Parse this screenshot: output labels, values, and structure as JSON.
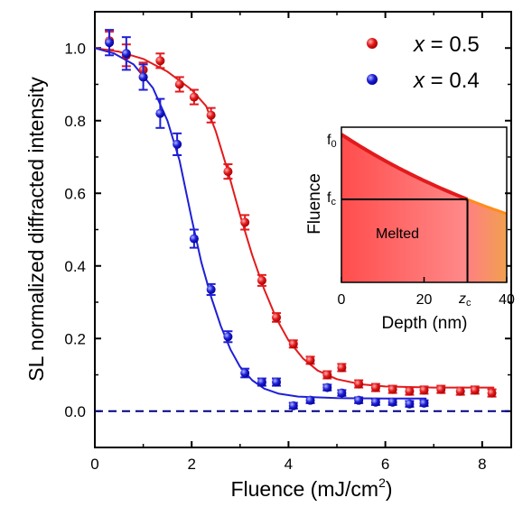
{
  "chart_data": {
    "type": "scatter",
    "xlabel_main": "Fluence (mJ/cm",
    "xlabel_sup": "2",
    "xlabel_close": ")",
    "ylabel": "SL normalized diffracted intensity",
    "xlim": [
      0,
      8.6
    ],
    "ylim": [
      -0.1,
      1.1
    ],
    "x_ticks": [
      0,
      2,
      4,
      6,
      8
    ],
    "y_ticks": [
      0.0,
      0.2,
      0.4,
      0.6,
      0.8,
      1.0
    ],
    "x_tick_labels": [
      "0",
      "2",
      "4",
      "6",
      "8"
    ],
    "y_tick_labels": [
      "0.0",
      "0.2",
      "0.4",
      "0.6",
      "0.8",
      "1.0"
    ],
    "baseline": 0.0,
    "legend_position": "top-right",
    "series": [
      {
        "name": "x = 0.5",
        "color": "#e31a1c",
        "points": [
          {
            "x": 0.3,
            "y": 1.02,
            "err": 0.025
          },
          {
            "x": 0.65,
            "y": 0.98,
            "err": 0.03
          },
          {
            "x": 1.0,
            "y": 0.94,
            "err": 0.02
          },
          {
            "x": 1.35,
            "y": 0.965,
            "err": 0.02
          },
          {
            "x": 1.75,
            "y": 0.9,
            "err": 0.02
          },
          {
            "x": 2.05,
            "y": 0.865,
            "err": 0.02
          },
          {
            "x": 2.4,
            "y": 0.815,
            "err": 0.02
          },
          {
            "x": 2.75,
            "y": 0.66,
            "err": 0.02
          },
          {
            "x": 3.1,
            "y": 0.52,
            "err": 0.02
          },
          {
            "x": 3.45,
            "y": 0.36,
            "err": 0.015
          },
          {
            "x": 3.75,
            "y": 0.258,
            "err": 0.012
          },
          {
            "x": 4.1,
            "y": 0.185,
            "err": 0.01
          },
          {
            "x": 4.45,
            "y": 0.14,
            "err": 0.01
          },
          {
            "x": 4.8,
            "y": 0.1,
            "err": 0.01
          },
          {
            "x": 5.1,
            "y": 0.12,
            "err": 0.01
          },
          {
            "x": 5.45,
            "y": 0.075,
            "err": 0.01
          },
          {
            "x": 5.8,
            "y": 0.065,
            "err": 0.01
          },
          {
            "x": 6.15,
            "y": 0.06,
            "err": 0.01
          },
          {
            "x": 6.5,
            "y": 0.055,
            "err": 0.01
          },
          {
            "x": 6.8,
            "y": 0.058,
            "err": 0.01
          },
          {
            "x": 7.15,
            "y": 0.06,
            "err": 0.01
          },
          {
            "x": 7.55,
            "y": 0.055,
            "err": 0.01
          },
          {
            "x": 7.85,
            "y": 0.058,
            "err": 0.01
          },
          {
            "x": 8.2,
            "y": 0.05,
            "err": 0.01
          }
        ],
        "fit": [
          {
            "x": 0,
            "y": 1.0
          },
          {
            "x": 0.5,
            "y": 0.99
          },
          {
            "x": 1.0,
            "y": 0.97
          },
          {
            "x": 1.5,
            "y": 0.935
          },
          {
            "x": 2.0,
            "y": 0.885
          },
          {
            "x": 2.3,
            "y": 0.84
          },
          {
            "x": 2.5,
            "y": 0.77
          },
          {
            "x": 2.75,
            "y": 0.66
          },
          {
            "x": 3.0,
            "y": 0.54
          },
          {
            "x": 3.25,
            "y": 0.43
          },
          {
            "x": 3.5,
            "y": 0.335
          },
          {
            "x": 3.75,
            "y": 0.255
          },
          {
            "x": 4.0,
            "y": 0.195
          },
          {
            "x": 4.3,
            "y": 0.145
          },
          {
            "x": 4.6,
            "y": 0.112
          },
          {
            "x": 5.0,
            "y": 0.088
          },
          {
            "x": 5.5,
            "y": 0.074
          },
          {
            "x": 6.0,
            "y": 0.068
          },
          {
            "x": 7.0,
            "y": 0.065
          },
          {
            "x": 8.25,
            "y": 0.065
          }
        ]
      },
      {
        "name": "x = 0.4",
        "color": "#1f1fd6",
        "points": [
          {
            "x": 0.3,
            "y": 1.015,
            "err": 0.035
          },
          {
            "x": 0.65,
            "y": 0.985,
            "err": 0.045
          },
          {
            "x": 1.0,
            "y": 0.92,
            "err": 0.035
          },
          {
            "x": 1.35,
            "y": 0.82,
            "err": 0.04
          },
          {
            "x": 1.7,
            "y": 0.735,
            "err": 0.03
          },
          {
            "x": 2.05,
            "y": 0.475,
            "err": 0.025
          },
          {
            "x": 2.4,
            "y": 0.335,
            "err": 0.015
          },
          {
            "x": 2.75,
            "y": 0.205,
            "err": 0.015
          },
          {
            "x": 3.1,
            "y": 0.105,
            "err": 0.012
          },
          {
            "x": 3.45,
            "y": 0.08,
            "err": 0.01
          },
          {
            "x": 3.75,
            "y": 0.08,
            "err": 0.01
          },
          {
            "x": 4.1,
            "y": 0.015,
            "err": 0.008
          },
          {
            "x": 4.45,
            "y": 0.03,
            "err": 0.008
          },
          {
            "x": 4.8,
            "y": 0.065,
            "err": 0.008
          },
          {
            "x": 5.1,
            "y": 0.05,
            "err": 0.008
          },
          {
            "x": 5.45,
            "y": 0.03,
            "err": 0.008
          },
          {
            "x": 5.8,
            "y": 0.025,
            "err": 0.008
          },
          {
            "x": 6.15,
            "y": 0.025,
            "err": 0.008
          },
          {
            "x": 6.5,
            "y": 0.02,
            "err": 0.008
          },
          {
            "x": 6.8,
            "y": 0.022,
            "err": 0.008
          }
        ],
        "fit": [
          {
            "x": 0,
            "y": 1.0
          },
          {
            "x": 0.4,
            "y": 0.985
          },
          {
            "x": 0.8,
            "y": 0.955
          },
          {
            "x": 1.2,
            "y": 0.89
          },
          {
            "x": 1.5,
            "y": 0.8
          },
          {
            "x": 1.75,
            "y": 0.69
          },
          {
            "x": 2.0,
            "y": 0.53
          },
          {
            "x": 2.2,
            "y": 0.41
          },
          {
            "x": 2.4,
            "y": 0.315
          },
          {
            "x": 2.6,
            "y": 0.235
          },
          {
            "x": 2.8,
            "y": 0.17
          },
          {
            "x": 3.0,
            "y": 0.122
          },
          {
            "x": 3.25,
            "y": 0.085
          },
          {
            "x": 3.5,
            "y": 0.062
          },
          {
            "x": 3.8,
            "y": 0.048
          },
          {
            "x": 4.2,
            "y": 0.04
          },
          {
            "x": 5.0,
            "y": 0.036
          },
          {
            "x": 6.0,
            "y": 0.035
          },
          {
            "x": 6.85,
            "y": 0.035
          }
        ]
      }
    ],
    "inset": {
      "xlabel": "Depth (nm)",
      "ylabel": "Fluence",
      "xlim": [
        0,
        40
      ],
      "x_ticks": [
        0,
        20,
        40
      ],
      "x_tick_labels": [
        "0",
        "20",
        "40"
      ],
      "zc_label": "z",
      "zc_sub": "c",
      "zc": 30.5,
      "f0_label": "f",
      "f0_sub": "0",
      "fc_label": "f",
      "fc_sub": "c",
      "region_label": "Melted",
      "curve_color_top": "#e31a1c",
      "curve_color_tail": "#ff8c1a",
      "melted_fill": "#ff5a5a"
    }
  }
}
